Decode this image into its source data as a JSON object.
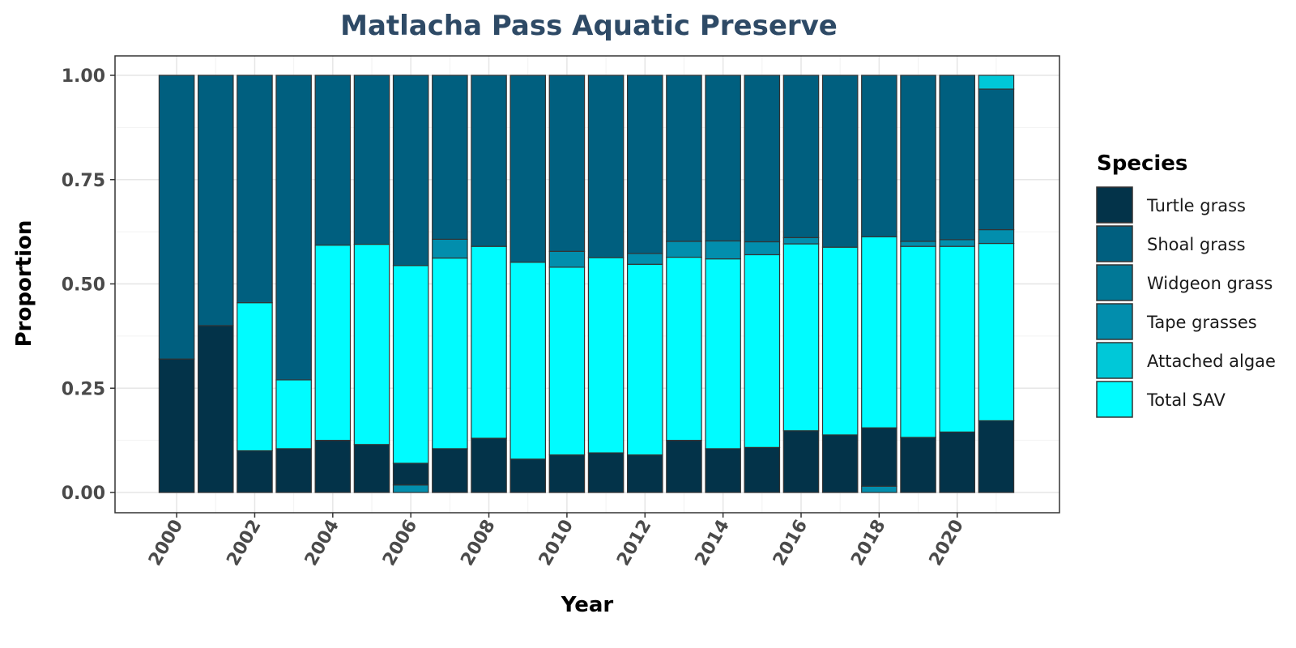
{
  "chart_data": {
    "type": "bar",
    "stacked": true,
    "title": "Matlacha Pass Aquatic Preserve",
    "xlabel": "Year",
    "ylabel": "Proportion",
    "ylim": [
      0,
      1
    ],
    "yticks": [
      0.0,
      0.25,
      0.5,
      0.75,
      1.0
    ],
    "ytick_labels": [
      "0.00",
      "0.25",
      "0.50",
      "0.75",
      "1.00"
    ],
    "xlim": [
      1999.5,
      2021.5
    ],
    "xticks": [
      2000,
      2002,
      2004,
      2006,
      2008,
      2010,
      2012,
      2014,
      2016,
      2018,
      2020
    ],
    "xtick_labels": [
      "2000",
      "2002",
      "2004",
      "2006",
      "2008",
      "2010",
      "2012",
      "2014",
      "2016",
      "2018",
      "2020"
    ],
    "grid": true,
    "legend": {
      "title": "Species",
      "position": "right"
    },
    "categories": [
      2000,
      2001,
      2002,
      2003,
      2004,
      2005,
      2006,
      2007,
      2008,
      2009,
      2010,
      2011,
      2012,
      2013,
      2014,
      2015,
      2016,
      2017,
      2018,
      2019,
      2020,
      2021
    ],
    "series": [
      {
        "name": "Turtle grass",
        "color": "#033349",
        "values": [
          0.32,
          0.4,
          0.1,
          0.105,
          0.125,
          0.115,
          0.0,
          0.105,
          0.13,
          0.08,
          0.09,
          0.095,
          0.09,
          0.125,
          0.105,
          0.108,
          0.148,
          0.138,
          0.0,
          0.132,
          0.145,
          0.172
        ]
      },
      {
        "name": "Tape grasses",
        "color": "#028ead",
        "values": [
          0,
          0,
          0,
          0,
          0,
          0,
          0.018,
          0,
          0,
          0,
          0,
          0,
          0,
          0,
          0,
          0,
          0,
          0,
          0.015,
          0,
          0,
          0
        ]
      },
      {
        "name": "Turtle grass",
        "color": "#033349",
        "values": [
          0,
          0,
          0,
          0,
          0,
          0,
          0.052,
          0,
          0,
          0,
          0,
          0,
          0,
          0,
          0,
          0,
          0,
          0,
          0.14,
          0,
          0,
          0
        ]
      },
      {
        "name": "Total SAV",
        "color": "#00fcff",
        "values": [
          0,
          0,
          0.355,
          0.165,
          0.468,
          0.48,
          0.474,
          0.457,
          0.46,
          0.472,
          0.45,
          0.468,
          0.457,
          0.439,
          0.455,
          0.462,
          0.448,
          0.45,
          0.458,
          0.458,
          0.445,
          0.425
        ]
      },
      {
        "name": "Tape grasses",
        "color": "#028ead",
        "values": [
          0,
          0,
          0,
          0,
          0,
          0,
          0,
          0.045,
          0,
          0,
          0.038,
          0,
          0.026,
          0.038,
          0.043,
          0.031,
          0.015,
          0,
          0,
          0.012,
          0.016,
          0.033
        ]
      },
      {
        "name": "Shoal grass",
        "color": "#005f7f",
        "values": [
          0.68,
          0.6,
          0.545,
          0.73,
          0.407,
          0.405,
          0.456,
          0.393,
          0.41,
          0.448,
          0.422,
          0.437,
          0.427,
          0.398,
          0.397,
          0.399,
          0.389,
          0.412,
          0.387,
          0.398,
          0.394,
          0.337
        ]
      },
      {
        "name": "Attached algae",
        "color": "#00c8d8",
        "values": [
          0,
          0,
          0,
          0,
          0,
          0,
          0,
          0,
          0,
          0,
          0,
          0,
          0,
          0,
          0,
          0,
          0,
          0,
          0,
          0,
          0,
          0.033
        ]
      }
    ],
    "legend_entries": [
      {
        "label": "Turtle grass",
        "color": "#033349"
      },
      {
        "label": "Shoal grass",
        "color": "#005f7f"
      },
      {
        "label": "Widgeon grass",
        "color": "#017896"
      },
      {
        "label": "Tape grasses",
        "color": "#028ead"
      },
      {
        "label": "Attached algae",
        "color": "#00c8d8"
      },
      {
        "label": "Total SAV",
        "color": "#00fcff"
      }
    ]
  }
}
